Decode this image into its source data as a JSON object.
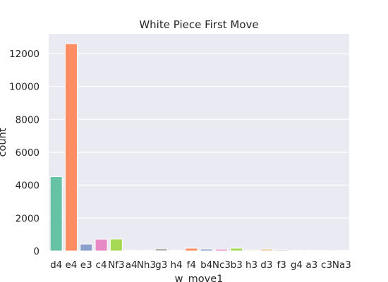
{
  "chart_data": {
    "type": "bar",
    "title": "White Piece First Move",
    "xlabel": "w_move1",
    "ylabel": "count",
    "categories": [
      "d4",
      "e4",
      "e3",
      "c4",
      "Nf3",
      "a4",
      "Nh3",
      "g3",
      "h4",
      "f4",
      "b4",
      "Nc3",
      "b3",
      "h3",
      "d3",
      "f3",
      "g4",
      "a3",
      "c3",
      "Na3"
    ],
    "values": [
      4520,
      12600,
      420,
      720,
      730,
      40,
      40,
      160,
      40,
      170,
      120,
      110,
      170,
      50,
      120,
      60,
      40,
      40,
      30,
      30
    ],
    "ylim": [
      0,
      13200
    ],
    "yticks": [
      "0",
      "2000",
      "4000",
      "6000",
      "8000",
      "10000",
      "12000"
    ],
    "colors": [
      "#66c2a5",
      "#fc8d62",
      "#8da0cb",
      "#e78ac3",
      "#a6d854",
      "#ffd92f",
      "#e5c494",
      "#b3b3b3"
    ],
    "background": "#eaeaf2",
    "grid": true,
    "legend": "none"
  }
}
